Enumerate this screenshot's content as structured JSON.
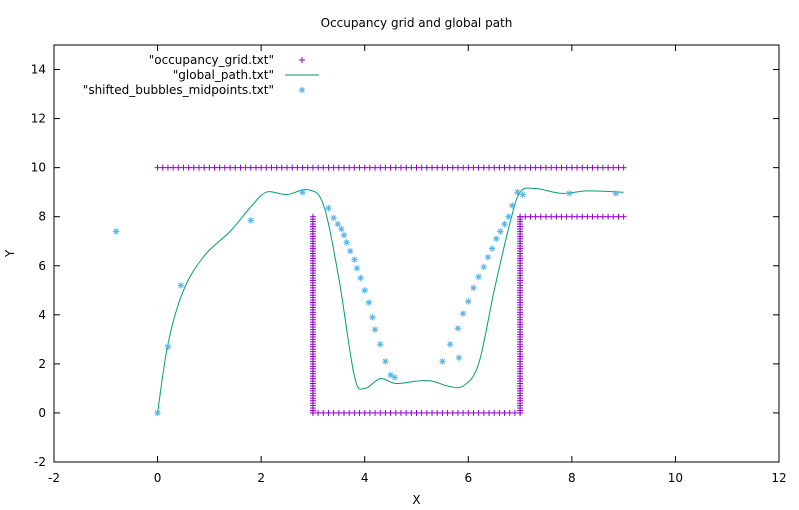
{
  "chart_data": {
    "type": "scatter",
    "title": "Occupancy grid and global path",
    "xlabel": "X",
    "ylabel": "Y",
    "xlim": [
      -2,
      12
    ],
    "ylim": [
      -2,
      15
    ],
    "x_ticks": [
      "-2",
      "0",
      "2",
      "4",
      "6",
      "8",
      "10",
      "12"
    ],
    "y_ticks": [
      "-2",
      "0",
      "2",
      "4",
      "6",
      "8",
      "10",
      "12",
      "14"
    ],
    "grid": false,
    "legend_position": "top-left",
    "series": [
      {
        "name": "\"occupancy_grid.txt\"",
        "style": "plus-points",
        "color": "#9400d3",
        "segments": [
          {
            "from": [
              0.0,
              10.0
            ],
            "to": [
              9.0,
              10.0
            ],
            "step": 0.1
          },
          {
            "from": [
              3.0,
              0.0
            ],
            "to": [
              7.0,
              0.0
            ],
            "step": 0.1
          },
          {
            "from": [
              3.0,
              0.0
            ],
            "to": [
              3.0,
              8.0
            ],
            "step": 0.1
          },
          {
            "from": [
              7.0,
              0.0
            ],
            "to": [
              7.0,
              8.0
            ],
            "step": 0.1
          },
          {
            "from": [
              7.0,
              8.0
            ],
            "to": [
              9.0,
              8.0
            ],
            "step": 0.1
          }
        ]
      },
      {
        "name": "\"global_path.txt\"",
        "style": "line",
        "color": "#009e73",
        "points": [
          [
            0.0,
            0.0
          ],
          [
            0.2,
            2.8
          ],
          [
            0.5,
            5.0
          ],
          [
            0.9,
            6.4
          ],
          [
            1.4,
            7.4
          ],
          [
            1.8,
            8.4
          ],
          [
            2.1,
            9.0
          ],
          [
            2.5,
            8.9
          ],
          [
            2.9,
            9.1
          ],
          [
            3.2,
            8.5
          ],
          [
            3.5,
            5.5
          ],
          [
            3.8,
            1.5
          ],
          [
            4.0,
            1.0
          ],
          [
            4.3,
            1.4
          ],
          [
            4.6,
            1.2
          ],
          [
            5.0,
            1.3
          ],
          [
            5.3,
            1.3
          ],
          [
            5.6,
            1.1
          ],
          [
            5.9,
            1.1
          ],
          [
            6.2,
            2.0
          ],
          [
            6.5,
            5.0
          ],
          [
            6.8,
            7.7
          ],
          [
            7.0,
            9.0
          ],
          [
            7.3,
            9.15
          ],
          [
            7.8,
            8.95
          ],
          [
            8.3,
            9.05
          ],
          [
            9.0,
            9.0
          ]
        ]
      },
      {
        "name": "\"shifted_bubbles_midpoints.txt\"",
        "style": "star-points",
        "color": "#56b4e9",
        "points": [
          [
            -0.8,
            7.4
          ],
          [
            0.0,
            0.0
          ],
          [
            0.2,
            2.7
          ],
          [
            0.45,
            5.2
          ],
          [
            1.8,
            7.85
          ],
          [
            2.8,
            9.0
          ],
          [
            3.3,
            8.35
          ],
          [
            3.4,
            7.95
          ],
          [
            3.48,
            7.7
          ],
          [
            3.55,
            7.5
          ],
          [
            3.6,
            7.25
          ],
          [
            3.65,
            6.95
          ],
          [
            3.72,
            6.6
          ],
          [
            3.8,
            6.25
          ],
          [
            3.85,
            5.9
          ],
          [
            3.92,
            5.5
          ],
          [
            4.0,
            5.0
          ],
          [
            4.08,
            4.5
          ],
          [
            4.15,
            3.9
          ],
          [
            4.2,
            3.4
          ],
          [
            4.3,
            2.8
          ],
          [
            4.4,
            2.1
          ],
          [
            4.5,
            1.55
          ],
          [
            4.58,
            1.45
          ],
          [
            5.5,
            2.1
          ],
          [
            5.65,
            2.8
          ],
          [
            5.8,
            3.45
          ],
          [
            5.82,
            2.25
          ],
          [
            5.9,
            4.05
          ],
          [
            6.0,
            4.55
          ],
          [
            6.1,
            5.1
          ],
          [
            6.2,
            5.55
          ],
          [
            6.3,
            5.95
          ],
          [
            6.38,
            6.35
          ],
          [
            6.46,
            6.7
          ],
          [
            6.54,
            7.1
          ],
          [
            6.62,
            7.4
          ],
          [
            6.7,
            7.7
          ],
          [
            6.78,
            8.0
          ],
          [
            6.85,
            8.45
          ],
          [
            6.95,
            9.0
          ],
          [
            7.05,
            8.9
          ],
          [
            7.95,
            8.95
          ],
          [
            8.85,
            8.95
          ]
        ]
      }
    ]
  }
}
